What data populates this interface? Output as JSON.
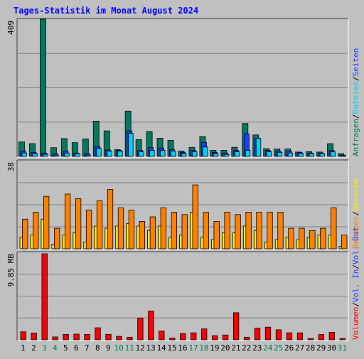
{
  "title": "Tages-Statistik im Monat August 2024",
  "colors": {
    "background": "#c0c0c0",
    "title": "#0000ff",
    "grid": "#808080",
    "text": "#000000",
    "anfragen": "#007a5e",
    "seiten": "#1e3cff",
    "dateien": "#00d0ff",
    "besuche": "#ffee00",
    "rechner": "#ff8000",
    "volumen": "#ff0000",
    "weekend_label": "#007a5e"
  },
  "chart_data": [
    {
      "type": "bar",
      "panel": "top",
      "ymax_label": "409",
      "ymax": 409,
      "categories": [
        "1",
        "2",
        "3",
        "4",
        "5",
        "6",
        "7",
        "8",
        "9",
        "10",
        "11",
        "12",
        "13",
        "14",
        "15",
        "16",
        "17",
        "18",
        "19",
        "20",
        "21",
        "22",
        "23",
        "24",
        "25",
        "26",
        "27",
        "28",
        "29",
        "30",
        "31"
      ],
      "legend": [
        {
          "text": "Anfragen",
          "color_key": "anfragen"
        },
        {
          "text": "Dateien",
          "color_key": "dateien"
        },
        {
          "text": "Seiten",
          "color_key": "seiten"
        }
      ],
      "legend_separator": "/",
      "series": [
        {
          "name": "Anfragen",
          "color_key": "anfragen",
          "values": [
            43,
            38,
            409,
            26,
            53,
            41,
            52,
            105,
            76,
            20,
            135,
            50,
            74,
            54,
            48,
            16,
            27,
            59,
            18,
            18,
            27,
            98,
            64,
            23,
            22,
            22,
            13,
            14,
            13,
            38,
            8
          ]
        },
        {
          "name": "Seiten",
          "color_key": "seiten",
          "values": [
            16,
            12,
            10,
            8,
            16,
            10,
            8,
            30,
            19,
            18,
            76,
            18,
            26,
            25,
            20,
            12,
            18,
            42,
            12,
            10,
            18,
            67,
            54,
            18,
            16,
            16,
            12,
            10,
            10,
            18,
            4
          ]
        },
        {
          "name": "Dateien",
          "color_key": "dateien",
          "values": [
            10,
            8,
            6,
            4,
            10,
            8,
            4,
            24,
            16,
            16,
            69,
            14,
            18,
            18,
            16,
            8,
            14,
            28,
            8,
            6,
            14,
            18,
            54,
            14,
            12,
            10,
            8,
            8,
            8,
            14,
            2
          ]
        }
      ]
    },
    {
      "type": "bar",
      "panel": "middle",
      "ymax_label": "38",
      "ymax": 38,
      "categories": [
        "1",
        "2",
        "3",
        "4",
        "5",
        "6",
        "7",
        "8",
        "9",
        "10",
        "11",
        "12",
        "13",
        "14",
        "15",
        "16",
        "17",
        "18",
        "19",
        "20",
        "21",
        "22",
        "23",
        "24",
        "25",
        "26",
        "27",
        "28",
        "29",
        "30",
        "31"
      ],
      "legend": [
        {
          "text": "Rechner",
          "color_key": "rechner"
        },
        {
          "text": "Besuche",
          "color_key": "besuche"
        }
      ],
      "legend_separator": "/",
      "series": [
        {
          "name": "Besuche",
          "color_key": "besuche",
          "values": [
            5,
            6,
            13,
            2,
            6,
            7,
            3,
            10,
            9,
            10,
            11,
            10,
            8,
            10,
            5,
            6,
            16,
            5,
            4,
            7,
            7,
            10,
            8,
            3,
            4,
            5,
            4,
            5,
            6,
            6,
            1
          ]
        },
        {
          "name": "Rechner",
          "color_key": "rechner",
          "values": [
            13,
            16,
            23,
            9,
            24,
            22,
            17,
            21,
            26,
            18,
            17,
            12,
            14,
            18,
            16,
            15,
            28,
            16,
            12,
            16,
            15,
            16,
            16,
            16,
            16,
            9,
            9,
            8,
            9,
            18,
            6
          ]
        }
      ]
    },
    {
      "type": "bar",
      "panel": "bottom",
      "ymax_label": "9.85 MB",
      "ymax": 9.85,
      "categories": [
        "1",
        "2",
        "3",
        "4",
        "5",
        "6",
        "7",
        "8",
        "9",
        "10",
        "11",
        "12",
        "13",
        "14",
        "15",
        "16",
        "17",
        "18",
        "19",
        "20",
        "21",
        "22",
        "23",
        "24",
        "25",
        "26",
        "27",
        "28",
        "29",
        "30",
        "31"
      ],
      "legend": [
        {
          "text": "Volumen",
          "color_key": "volumen"
        },
        {
          "text": "Vol. In",
          "color_key": "seiten"
        },
        {
          "text": "Vol. Out",
          "color_key": "seiten"
        }
      ],
      "legend_separator": "/",
      "series": [
        {
          "name": "Volumen",
          "color_key": "volumen",
          "values": [
            0.92,
            0.77,
            9.85,
            0.33,
            0.62,
            0.65,
            0.62,
            1.38,
            0.62,
            0.4,
            0.3,
            2.5,
            3.3,
            1.0,
            0.2,
            0.7,
            0.8,
            1.25,
            0.47,
            0.55,
            3.1,
            0.3,
            1.35,
            1.45,
            1.15,
            0.8,
            0.8,
            0.15,
            0.6,
            0.85,
            0.15
          ]
        }
      ]
    }
  ],
  "weekend_days": [
    "3",
    "4",
    "10",
    "11",
    "17",
    "18",
    "24",
    "25",
    "31"
  ]
}
